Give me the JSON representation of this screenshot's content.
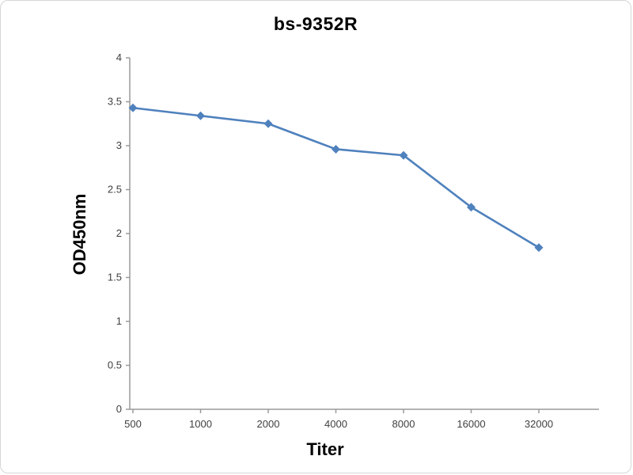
{
  "chart_data": {
    "type": "line",
    "title": "bs-9352R",
    "xlabel": "Titer",
    "ylabel": "OD450nm",
    "categories": [
      "500",
      "1000",
      "2000",
      "4000",
      "8000",
      "16000",
      "32000"
    ],
    "series": [
      {
        "name": "bs-9352R",
        "values": [
          3.43,
          3.34,
          3.25,
          2.96,
          2.89,
          2.3,
          1.84
        ]
      }
    ],
    "ylim": [
      0,
      4
    ],
    "ytick_step": 0.5,
    "grid": false,
    "legend_position": "none",
    "line_color": "#4F81BD",
    "marker": "diamond",
    "axis_color": "#9a9a9a"
  }
}
